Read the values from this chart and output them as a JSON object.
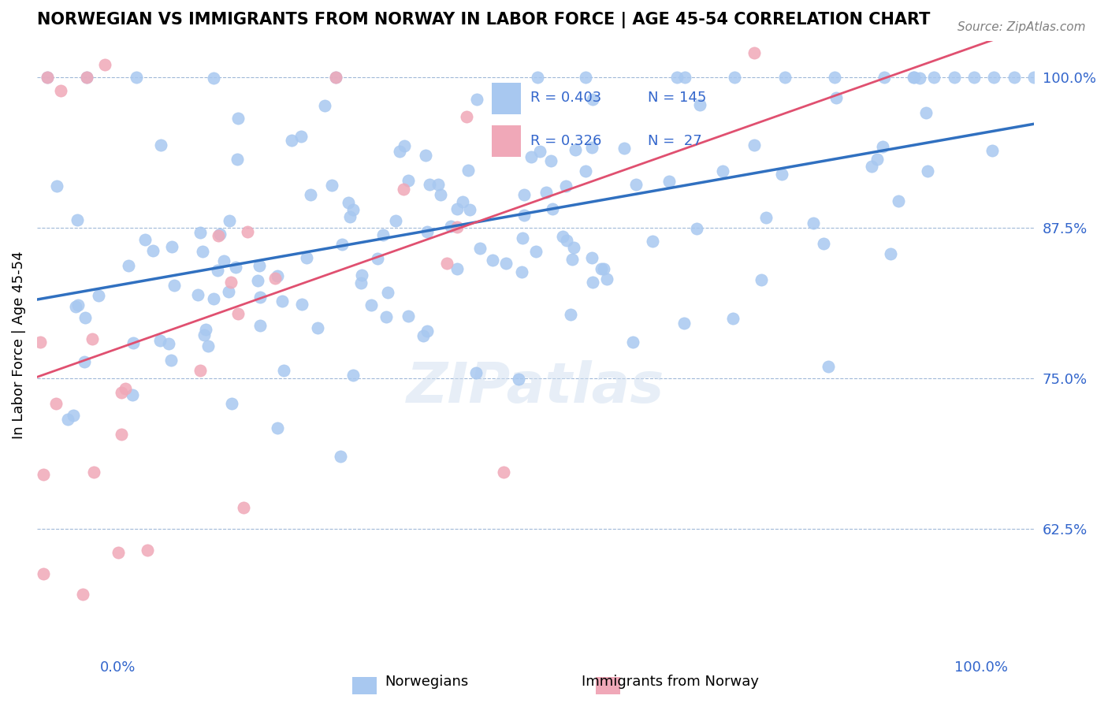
{
  "title": "NORWEGIAN VS IMMIGRANTS FROM NORWAY IN LABOR FORCE | AGE 45-54 CORRELATION CHART",
  "source": "Source: ZipAtlas.com",
  "ylabel": "In Labor Force | Age 45-54",
  "xlim": [
    0.0,
    1.0
  ],
  "ylim": [
    0.525,
    1.03
  ],
  "watermark": "ZIPatlas",
  "legend_blue_r": "R = 0.403",
  "legend_blue_n": "N = 145",
  "legend_pink_r": "R = 0.326",
  "legend_pink_n": "N =  27",
  "blue_color": "#a8c8f0",
  "pink_color": "#f0a8b8",
  "trend_blue": "#3070c0",
  "trend_pink": "#e05070",
  "grid_color": "#a0b8d8",
  "label_color": "#3366cc",
  "title_fontsize": 15,
  "tick_fontsize": 13,
  "source_fontsize": 11
}
